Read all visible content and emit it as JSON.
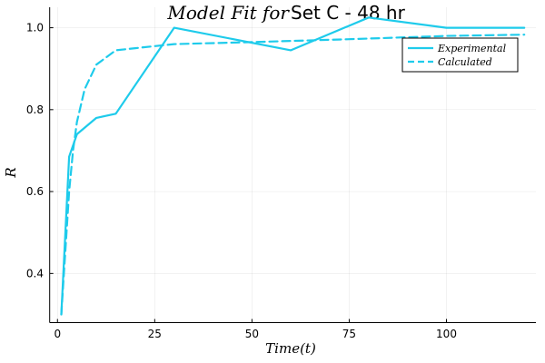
{
  "chart_data": {
    "type": "line",
    "title_italic": "Model Fit for",
    "title_plain": "Set C - 48 hr",
    "xlabel": "Time(t)",
    "ylabel": "R",
    "xlim": [
      -2,
      123
    ],
    "ylim": [
      0.28,
      1.05
    ],
    "xticks": [
      0,
      25,
      50,
      75,
      100
    ],
    "yticks": [
      0.4,
      0.6,
      0.8,
      1.0
    ],
    "xtick_labels": [
      "0",
      "25",
      "50",
      "75",
      "100"
    ],
    "ytick_labels": [
      "0.4",
      "0.6",
      "0.8",
      "1.0"
    ],
    "grid": true,
    "legend_position": "top-right",
    "series": [
      {
        "name": "Experimental",
        "style": "solid",
        "color": "#1ecbeb",
        "x": [
          1,
          3,
          5,
          10,
          15,
          30,
          60,
          80,
          100,
          120
        ],
        "y": [
          0.3,
          0.685,
          0.74,
          0.78,
          0.79,
          1.0,
          0.945,
          1.025,
          1.0,
          1.0
        ]
      },
      {
        "name": "Calculated",
        "style": "dashed",
        "color": "#1ecbeb",
        "x": [
          1,
          2,
          3,
          4,
          5,
          7,
          10,
          15,
          20,
          30,
          50,
          75,
          100,
          120
        ],
        "y": [
          0.3,
          0.45,
          0.6,
          0.7,
          0.77,
          0.85,
          0.91,
          0.945,
          0.95,
          0.96,
          0.965,
          0.972,
          0.98,
          0.983
        ]
      }
    ]
  }
}
